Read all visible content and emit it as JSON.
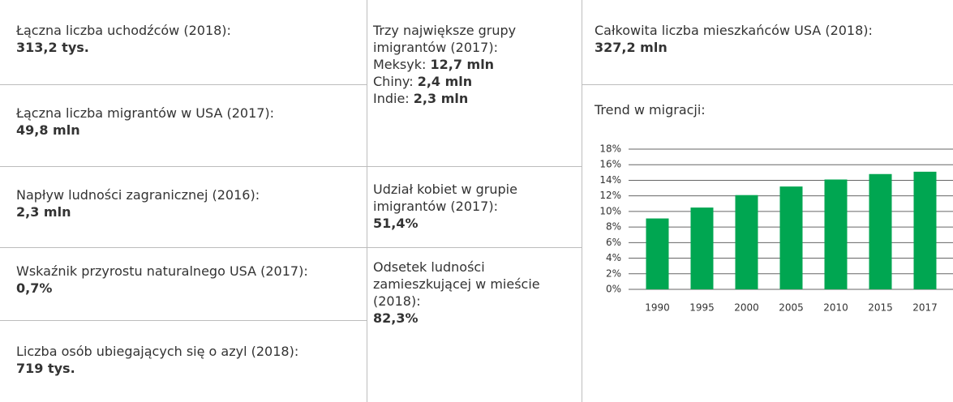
{
  "column1": [
    {
      "label": "Łączna liczba uchodźców (2018):",
      "value": "313,2 tys."
    },
    {
      "label": "Łączna liczba migrantów w USA (2017):",
      "value": "49,8 mln"
    },
    {
      "label": "Napływ ludności zagranicznej (2016):",
      "value": "2,3 mln"
    },
    {
      "label": "Wskaźnik przyrostu naturalnego USA (2017):",
      "value": "0,7%"
    },
    {
      "label": "Liczba osób ubiegających się o azyl (2018):",
      "value": "719 tys."
    }
  ],
  "column2": {
    "groups": {
      "label": "Trzy największe grupy imigrantów (2017):",
      "items": [
        {
          "label": "Meksyk:",
          "value": "12,7 mln"
        },
        {
          "label": "Chiny:",
          "value": "2,4 mln"
        },
        {
          "label": "Indie:",
          "value": "2,3 mln"
        }
      ]
    },
    "women": {
      "label": "Udział kobiet w grupie imigrantów (2017):",
      "value": "51,4%"
    },
    "urban": {
      "label": "Odsetek ludności zamieszkującej w mieście (2018):",
      "value": "82,3%"
    }
  },
  "column3": {
    "label": "Całkowita liczba mieszkańców USA (2018):",
    "value": "327,2 mln"
  },
  "chart_data": {
    "type": "bar",
    "title": "Trend w migracji:",
    "categories": [
      "1990",
      "1995",
      "2000",
      "2005",
      "2010",
      "2015",
      "2017"
    ],
    "values": [
      9.1,
      10.5,
      12.1,
      13.2,
      14.1,
      14.8,
      15.1
    ],
    "color": "#00a651",
    "ylim": [
      0,
      18
    ],
    "yticks": [
      {
        "value": 0,
        "label": "0%"
      },
      {
        "value": 2,
        "label": "2%"
      },
      {
        "value": 4,
        "label": "4%"
      },
      {
        "value": 6,
        "label": "6%"
      },
      {
        "value": 8,
        "label": "8%"
      },
      {
        "value": 10,
        "label": "10%"
      },
      {
        "value": 12,
        "label": "12%"
      },
      {
        "value": 14,
        "label": "14%"
      },
      {
        "value": 16,
        "label": "16%"
      },
      {
        "value": 18,
        "label": "18%"
      }
    ],
    "grid": true
  }
}
